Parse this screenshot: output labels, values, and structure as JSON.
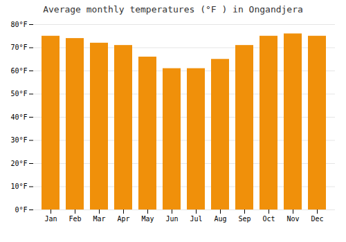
{
  "chart_data": {
    "type": "bar",
    "title": "Average monthly temperatures (°F ) in Ongandjera",
    "categories": [
      "Jan",
      "Feb",
      "Mar",
      "Apr",
      "May",
      "Jun",
      "Jul",
      "Aug",
      "Sep",
      "Oct",
      "Nov",
      "Dec"
    ],
    "values": [
      75,
      74,
      72,
      71,
      66,
      61,
      61,
      65,
      71,
      75,
      76,
      75
    ],
    "color": "#F0900A",
    "ylim": [
      0,
      80
    ],
    "yticks": [
      {
        "value": 0,
        "label": "0°F"
      },
      {
        "value": 10,
        "label": "10°F"
      },
      {
        "value": 20,
        "label": "20°F"
      },
      {
        "value": 30,
        "label": "30°F"
      },
      {
        "value": 40,
        "label": "40°F"
      },
      {
        "value": 50,
        "label": "50°F"
      },
      {
        "value": 60,
        "label": "60°F"
      },
      {
        "value": 70,
        "label": "70°F"
      },
      {
        "value": 80,
        "label": "80°F"
      }
    ],
    "grid": true
  }
}
